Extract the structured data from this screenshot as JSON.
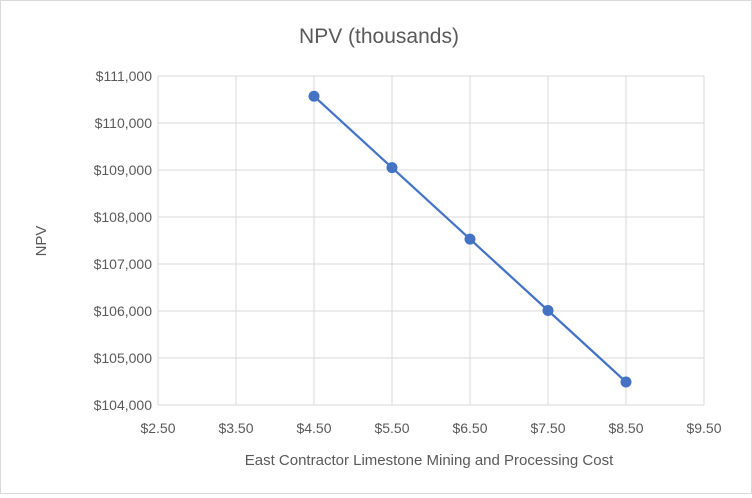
{
  "chart_data": {
    "type": "line",
    "title": "NPV (thousands)",
    "xlabel": "East Contractor Limestone Mining and Processing Cost",
    "ylabel": "NPV",
    "xlim": [
      2.5,
      9.5
    ],
    "ylim": [
      104000,
      111000
    ],
    "x_ticks": [
      2.5,
      3.5,
      4.5,
      5.5,
      6.5,
      7.5,
      8.5,
      9.5
    ],
    "x_tick_labels": [
      "$2.50",
      "$3.50",
      "$4.50",
      "$5.50",
      "$6.50",
      "$7.50",
      "$8.50",
      "$9.50"
    ],
    "y_ticks": [
      104000,
      105000,
      106000,
      107000,
      108000,
      109000,
      110000,
      111000
    ],
    "y_tick_labels": [
      "$104,000",
      "$105,000",
      "$106,000",
      "$107,000",
      "$108,000",
      "$109,000",
      "$110,000",
      "$111,000"
    ],
    "grid": true,
    "series": [
      {
        "name": "NPV",
        "color": "#4472c4",
        "x": [
          4.5,
          5.5,
          6.5,
          7.5,
          8.5
        ],
        "y": [
          110570,
          109050,
          107530,
          106010,
          104490
        ]
      }
    ]
  }
}
